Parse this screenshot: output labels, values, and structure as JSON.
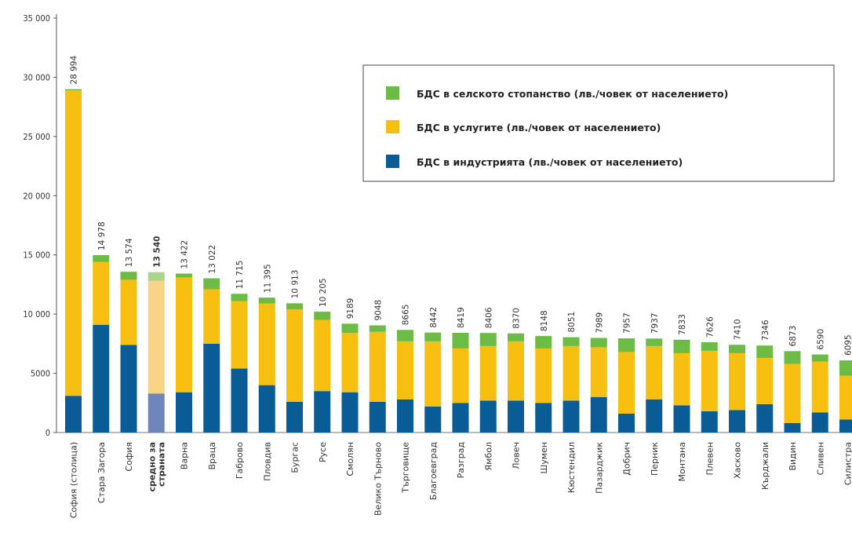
{
  "chart_data": {
    "type": "bar",
    "stacked": true,
    "ylim": [
      0,
      35000
    ],
    "yticks": [
      "0",
      "5000",
      "10 000",
      "15 000",
      "20 000",
      "25 000",
      "30 000",
      "35 000"
    ],
    "grid": false,
    "legend_placement": "top-right",
    "categories": [
      "София (столица)",
      "Стара Загора",
      "София",
      "средно за страната",
      "Варна",
      "Враца",
      "Габрово",
      "Пловдив",
      "Бургас",
      "Русе",
      "Смолян",
      "Велико Търново",
      "Търговище",
      "Благоевград",
      "Разград",
      "Ямбол",
      "Ловеч",
      "Шумен",
      "Кюстендил",
      "Пазарджик",
      "Добрич",
      "Перник",
      "Монтана",
      "Плевен",
      "Хасково",
      "Кърджали",
      "Видин",
      "Сливен",
      "Силистра"
    ],
    "totals_labels": [
      "28 994",
      "14 978",
      "13 574",
      "13 540",
      "13 422",
      "13 022",
      "11 715",
      "11 395",
      "10 913",
      "10 205",
      "9189",
      "9048",
      "8665",
      "8442",
      "8419",
      "8406",
      "8370",
      "8148",
      "8051",
      "7989",
      "7957",
      "7937",
      "7833",
      "7626",
      "7410",
      "7346",
      "6873",
      "6590",
      "6095"
    ],
    "highlight_category": "средно за страната",
    "series": [
      {
        "name": "БДС в индустрията (лв./човек от населението)",
        "color": "#0a5c96",
        "values": [
          3100,
          9100,
          7400,
          3300,
          3400,
          7500,
          5400,
          4000,
          2600,
          3500,
          3400,
          2600,
          2800,
          2200,
          2500,
          2700,
          2700,
          2500,
          2700,
          3000,
          1600,
          2800,
          2300,
          1800,
          1900,
          2400,
          800,
          1700,
          1100
        ]
      },
      {
        "name": "БДС в услугите (лв./човек от населението)",
        "color": "#f7bf0f",
        "values": [
          25800,
          5300,
          5500,
          9500,
          9700,
          4600,
          5700,
          6900,
          7800,
          6000,
          5000,
          5900,
          4900,
          5500,
          4600,
          4600,
          5000,
          4600,
          4600,
          4200,
          5200,
          4500,
          4400,
          5100,
          4800,
          3900,
          5000,
          4300,
          3700
        ]
      },
      {
        "name": "БДС в селското стопанство (лв./човек от населението)",
        "color": "#6cbb45",
        "values": [
          94,
          578,
          674,
          740,
          322,
          922,
          615,
          495,
          513,
          705,
          789,
          548,
          965,
          742,
          1319,
          1106,
          670,
          1048,
          751,
          789,
          1157,
          637,
          1133,
          726,
          710,
          1046,
          1073,
          590,
          1295
        ]
      }
    ],
    "highlight_colors": [
      "#6f86bb",
      "#f9d486",
      "#a9d48c"
    ]
  }
}
